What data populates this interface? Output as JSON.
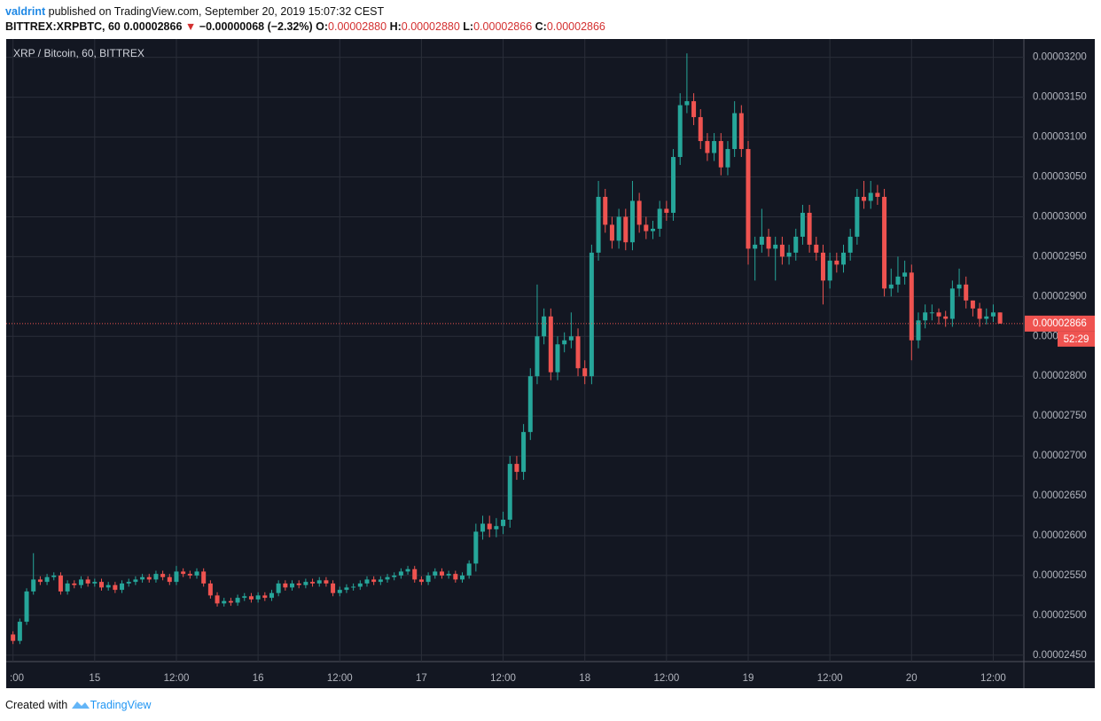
{
  "header": {
    "author": "valdrint",
    "published": "published on TradingView.com, September 20, 2019 15:07:32 CEST",
    "symbol": "BITTREX:XRPBTC, 60",
    "last": "0.00002866",
    "arrow": "▼",
    "change": "−0.00000068 (−2.32%)",
    "o_label": "O:",
    "o": "0.00002880",
    "h_label": "H:",
    "h": "0.00002880",
    "l_label": "L:",
    "l": "0.00002866",
    "c_label": "C:",
    "c": "0.00002866"
  },
  "footer": {
    "created": "Created with",
    "brand": "TradingView"
  },
  "chart_data": {
    "type": "candlestick",
    "title": "XRP / Bitcoin, 60, BITTREX",
    "up_color": "#26a69a",
    "down_color": "#ef5350",
    "grid": true,
    "price_label": "0.00002866",
    "price_value": 2.866e-05,
    "countdown": "52:29",
    "xlim": [
      -1,
      148.5
    ],
    "xticks": [
      {
        "value": 0,
        "label": ":00"
      },
      {
        "value": 12,
        "label": "15"
      },
      {
        "value": 24,
        "label": "12:00"
      },
      {
        "value": 36,
        "label": "16"
      },
      {
        "value": 48,
        "label": "12:00"
      },
      {
        "value": 60,
        "label": "17"
      },
      {
        "value": 72,
        "label": "12:00"
      },
      {
        "value": 84,
        "label": "18"
      },
      {
        "value": 96,
        "label": "12:00"
      },
      {
        "value": 108,
        "label": "19"
      },
      {
        "value": 120,
        "label": "12:00"
      },
      {
        "value": 132,
        "label": "20"
      },
      {
        "value": 144,
        "label": "12:00"
      }
    ],
    "ylim": [
      2.442e-05,
      3.223e-05
    ],
    "yticks": [
      {
        "value": 2.45e-05,
        "label": "0.00002450"
      },
      {
        "value": 2.5e-05,
        "label": "0.00002500"
      },
      {
        "value": 2.55e-05,
        "label": "0.00002550"
      },
      {
        "value": 2.6e-05,
        "label": "0.00002600"
      },
      {
        "value": 2.65e-05,
        "label": "0.00002650"
      },
      {
        "value": 2.7e-05,
        "label": "0.00002700"
      },
      {
        "value": 2.75e-05,
        "label": "0.00002750"
      },
      {
        "value": 2.8e-05,
        "label": "0.00002800"
      },
      {
        "value": 2.85e-05,
        "label": "0.00002850"
      },
      {
        "value": 2.9e-05,
        "label": "0.00002900"
      },
      {
        "value": 2.95e-05,
        "label": "0.00002950"
      },
      {
        "value": 3e-05,
        "label": "0.00003000"
      },
      {
        "value": 3.05e-05,
        "label": "0.00003050"
      },
      {
        "value": 3.1e-05,
        "label": "0.00003100"
      },
      {
        "value": 3.15e-05,
        "label": "0.00003150"
      },
      {
        "value": 3.2e-05,
        "label": "0.00003200"
      }
    ],
    "candles": [
      [
        2.476e-05,
        2.48e-05,
        2.464e-05,
        2.468e-05
      ],
      [
        2.468e-05,
        2.496e-05,
        2.464e-05,
        2.492e-05
      ],
      [
        2.492e-05,
        2.534e-05,
        2.488e-05,
        2.53e-05
      ],
      [
        2.53e-05,
        2.578e-05,
        2.526e-05,
        2.545e-05
      ],
      [
        2.545e-05,
        2.549e-05,
        2.538e-05,
        2.542e-05
      ],
      [
        2.542e-05,
        2.552e-05,
        2.538e-05,
        2.548e-05
      ],
      [
        2.548e-05,
        2.554e-05,
        2.544e-05,
        2.55e-05
      ],
      [
        2.55e-05,
        2.554e-05,
        2.526e-05,
        2.53e-05
      ],
      [
        2.53e-05,
        2.544e-05,
        2.526e-05,
        2.54e-05
      ],
      [
        2.54e-05,
        2.544e-05,
        2.534e-05,
        2.538e-05
      ],
      [
        2.538e-05,
        2.549e-05,
        2.534e-05,
        2.545e-05
      ],
      [
        2.545e-05,
        2.549e-05,
        2.536e-05,
        2.54e-05
      ],
      [
        2.54e-05,
        2.546e-05,
        2.536e-05,
        2.542e-05
      ],
      [
        2.542e-05,
        2.546e-05,
        2.531e-05,
        2.535e-05
      ],
      [
        2.535e-05,
        2.542e-05,
        2.531e-05,
        2.538e-05
      ],
      [
        2.538e-05,
        2.542e-05,
        2.528e-05,
        2.532e-05
      ],
      [
        2.532e-05,
        2.544e-05,
        2.528e-05,
        2.54e-05
      ],
      [
        2.54e-05,
        2.546e-05,
        2.536e-05,
        2.542e-05
      ],
      [
        2.542e-05,
        2.549e-05,
        2.538e-05,
        2.545e-05
      ],
      [
        2.545e-05,
        2.552e-05,
        2.541e-05,
        2.548e-05
      ],
      [
        2.548e-05,
        2.552e-05,
        2.541e-05,
        2.545e-05
      ],
      [
        2.545e-05,
        2.556e-05,
        2.541e-05,
        2.552e-05
      ],
      [
        2.552e-05,
        2.556e-05,
        2.544e-05,
        2.548e-05
      ],
      [
        2.548e-05,
        2.552e-05,
        2.538e-05,
        2.542e-05
      ],
      [
        2.542e-05,
        2.562e-05,
        2.538e-05,
        2.555e-05
      ],
      [
        2.555e-05,
        2.559e-05,
        2.548e-05,
        2.552e-05
      ],
      [
        2.552e-05,
        2.556e-05,
        2.546e-05,
        2.55e-05
      ],
      [
        2.55e-05,
        2.559e-05,
        2.546e-05,
        2.555e-05
      ],
      [
        2.555e-05,
        2.559e-05,
        2.536e-05,
        2.54e-05
      ],
      [
        2.54e-05,
        2.544e-05,
        2.521e-05,
        2.525e-05
      ],
      [
        2.525e-05,
        2.529e-05,
        2.511e-05,
        2.515e-05
      ],
      [
        2.515e-05,
        2.522e-05,
        2.511e-05,
        2.518e-05
      ],
      [
        2.518e-05,
        2.522e-05,
        2.512e-05,
        2.516e-05
      ],
      [
        2.516e-05,
        2.526e-05,
        2.512e-05,
        2.522e-05
      ],
      [
        2.522e-05,
        2.528e-05,
        2.518e-05,
        2.524e-05
      ],
      [
        2.524e-05,
        2.528e-05,
        2.516e-05,
        2.52e-05
      ],
      [
        2.52e-05,
        2.529e-05,
        2.516e-05,
        2.525e-05
      ],
      [
        2.525e-05,
        2.529e-05,
        2.518e-05,
        2.522e-05
      ],
      [
        2.522e-05,
        2.532e-05,
        2.518e-05,
        2.528e-05
      ],
      [
        2.528e-05,
        2.544e-05,
        2.524e-05,
        2.54e-05
      ],
      [
        2.54e-05,
        2.544e-05,
        2.531e-05,
        2.535e-05
      ],
      [
        2.535e-05,
        2.544e-05,
        2.531e-05,
        2.54e-05
      ],
      [
        2.54e-05,
        2.544e-05,
        2.534e-05,
        2.538e-05
      ],
      [
        2.538e-05,
        2.546e-05,
        2.534e-05,
        2.542e-05
      ],
      [
        2.542e-05,
        2.546e-05,
        2.536e-05,
        2.54e-05
      ],
      [
        2.54e-05,
        2.548e-05,
        2.536e-05,
        2.544e-05
      ],
      [
        2.544e-05,
        2.548e-05,
        2.536e-05,
        2.54e-05
      ],
      [
        2.54e-05,
        2.544e-05,
        2.524e-05,
        2.528e-05
      ],
      [
        2.528e-05,
        2.536e-05,
        2.524e-05,
        2.532e-05
      ],
      [
        2.532e-05,
        2.539e-05,
        2.528e-05,
        2.535e-05
      ],
      [
        2.535e-05,
        2.54e-05,
        2.531e-05,
        2.536e-05
      ],
      [
        2.536e-05,
        2.544e-05,
        2.532e-05,
        2.54e-05
      ],
      [
        2.54e-05,
        2.549e-05,
        2.536e-05,
        2.545e-05
      ],
      [
        2.545e-05,
        2.549e-05,
        2.538e-05,
        2.542e-05
      ],
      [
        2.542e-05,
        2.549e-05,
        2.538e-05,
        2.545e-05
      ],
      [
        2.545e-05,
        2.552e-05,
        2.541e-05,
        2.548e-05
      ],
      [
        2.548e-05,
        2.554e-05,
        2.544e-05,
        2.55e-05
      ],
      [
        2.55e-05,
        2.559e-05,
        2.546e-05,
        2.555e-05
      ],
      [
        2.555e-05,
        2.562e-05,
        2.551e-05,
        2.558e-05
      ],
      [
        2.558e-05,
        2.562e-05,
        2.541e-05,
        2.545e-05
      ],
      [
        2.545e-05,
        2.549e-05,
        2.538e-05,
        2.542e-05
      ],
      [
        2.542e-05,
        2.554e-05,
        2.538e-05,
        2.55e-05
      ],
      [
        2.55e-05,
        2.559e-05,
        2.546e-05,
        2.555e-05
      ],
      [
        2.555e-05,
        2.559e-05,
        2.546e-05,
        2.55e-05
      ],
      [
        2.55e-05,
        2.556e-05,
        2.546e-05,
        2.552e-05
      ],
      [
        2.552e-05,
        2.556e-05,
        2.541e-05,
        2.545e-05
      ],
      [
        2.545e-05,
        2.554e-05,
        2.541e-05,
        2.55e-05
      ],
      [
        2.55e-05,
        2.569e-05,
        2.546e-05,
        2.565e-05
      ],
      [
        2.565e-05,
        2.615e-05,
        2.555e-05,
        2.605e-05
      ],
      [
        2.605e-05,
        2.625e-05,
        2.595e-05,
        2.615e-05
      ],
      [
        2.615e-05,
        2.625e-05,
        2.598e-05,
        2.608e-05
      ],
      [
        2.608e-05,
        2.622e-05,
        2.598e-05,
        2.612e-05
      ],
      [
        2.612e-05,
        2.63e-05,
        2.602e-05,
        2.62e-05
      ],
      [
        2.62e-05,
        2.7e-05,
        2.61e-05,
        2.69e-05
      ],
      [
        2.69e-05,
        2.7e-05,
        2.67e-05,
        2.68e-05
      ],
      [
        2.68e-05,
        2.74e-05,
        2.67e-05,
        2.73e-05
      ],
      [
        2.73e-05,
        2.81e-05,
        2.72e-05,
        2.8e-05
      ],
      [
        2.8e-05,
        2.915e-05,
        2.79e-05,
        2.85e-05
      ],
      [
        2.85e-05,
        2.885e-05,
        2.84e-05,
        2.875e-05
      ],
      [
        2.875e-05,
        2.885e-05,
        2.795e-05,
        2.805e-05
      ],
      [
        2.805e-05,
        2.85e-05,
        2.795e-05,
        2.84e-05
      ],
      [
        2.84e-05,
        2.855e-05,
        2.83e-05,
        2.845e-05
      ],
      [
        2.845e-05,
        2.88e-05,
        2.835e-05,
        2.85e-05
      ],
      [
        2.85e-05,
        2.86e-05,
        2.8e-05,
        2.81e-05
      ],
      [
        2.81e-05,
        2.82e-05,
        2.79e-05,
        2.8e-05
      ],
      [
        2.8e-05,
        2.965e-05,
        2.79e-05,
        2.955e-05
      ],
      [
        2.955e-05,
        3.045e-05,
        2.945e-05,
        3.025e-05
      ],
      [
        3.025e-05,
        3.035e-05,
        2.98e-05,
        2.99e-05
      ],
      [
        2.99e-05,
        3e-05,
        2.96e-05,
        2.97e-05
      ],
      [
        2.97e-05,
        3.01e-05,
        2.96e-05,
        3e-05
      ],
      [
        3e-05,
        3.01e-05,
        2.958e-05,
        2.968e-05
      ],
      [
        2.968e-05,
        3.045e-05,
        2.958e-05,
        3.02e-05
      ],
      [
        3.02e-05,
        3.03e-05,
        2.98e-05,
        2.99e-05
      ],
      [
        2.99e-05,
        3e-05,
        2.972e-05,
        2.982e-05
      ],
      [
        2.982e-05,
        2.995e-05,
        2.972e-05,
        2.985e-05
      ],
      [
        2.985e-05,
        3.02e-05,
        2.975e-05,
        3.01e-05
      ],
      [
        3.01e-05,
        3.02e-05,
        2.995e-05,
        3.005e-05
      ],
      [
        3.005e-05,
        3.085e-05,
        2.995e-05,
        3.075e-05
      ],
      [
        3.075e-05,
        3.155e-05,
        3.065e-05,
        3.14e-05
      ],
      [
        3.14e-05,
        3.205e-05,
        3.13e-05,
        3.145e-05
      ],
      [
        3.145e-05,
        3.155e-05,
        3.115e-05,
        3.125e-05
      ],
      [
        3.125e-05,
        3.135e-05,
        3.085e-05,
        3.095e-05
      ],
      [
        3.095e-05,
        3.105e-05,
        3.07e-05,
        3.08e-05
      ],
      [
        3.08e-05,
        3.105e-05,
        3.07e-05,
        3.095e-05
      ],
      [
        3.095e-05,
        3.105e-05,
        3.052e-05,
        3.062e-05
      ],
      [
        3.062e-05,
        3.095e-05,
        3.052e-05,
        3.085e-05
      ],
      [
        3.085e-05,
        3.145e-05,
        3.075e-05,
        3.13e-05
      ],
      [
        3.13e-05,
        3.14e-05,
        3.075e-05,
        3.085e-05
      ],
      [
        3.085e-05,
        3.095e-05,
        2.94e-05,
        2.96e-05
      ],
      [
        2.96e-05,
        2.975e-05,
        2.92e-05,
        2.965e-05
      ],
      [
        2.965e-05,
        3.01e-05,
        2.955e-05,
        2.975e-05
      ],
      [
        2.975e-05,
        2.985e-05,
        2.95e-05,
        2.96e-05
      ],
      [
        2.96e-05,
        2.975e-05,
        2.92e-05,
        2.965e-05
      ],
      [
        2.965e-05,
        2.975e-05,
        2.94e-05,
        2.95e-05
      ],
      [
        2.95e-05,
        2.965e-05,
        2.94e-05,
        2.955e-05
      ],
      [
        2.955e-05,
        2.985e-05,
        2.945e-05,
        2.975e-05
      ],
      [
        2.975e-05,
        3.015e-05,
        2.965e-05,
        3.005e-05
      ],
      [
        3.005e-05,
        3.015e-05,
        2.955e-05,
        2.965e-05
      ],
      [
        2.965e-05,
        2.975e-05,
        2.945e-05,
        2.955e-05
      ],
      [
        2.955e-05,
        2.965e-05,
        2.89e-05,
        2.92e-05
      ],
      [
        2.92e-05,
        2.955e-05,
        2.91e-05,
        2.945e-05
      ],
      [
        2.945e-05,
        2.955e-05,
        2.93e-05,
        2.94e-05
      ],
      [
        2.94e-05,
        2.965e-05,
        2.93e-05,
        2.955e-05
      ],
      [
        2.955e-05,
        2.985e-05,
        2.945e-05,
        2.975e-05
      ],
      [
        2.975e-05,
        3.035e-05,
        2.965e-05,
        3.025e-05
      ],
      [
        3.025e-05,
        3.045e-05,
        3.01e-05,
        3.02e-05
      ],
      [
        3.02e-05,
        3.045e-05,
        3.01e-05,
        3.03e-05
      ],
      [
        3.03e-05,
        3.04e-05,
        3.015e-05,
        3.025e-05
      ],
      [
        3.025e-05,
        3.035e-05,
        2.9e-05,
        2.91e-05
      ],
      [
        2.91e-05,
        2.935e-05,
        2.9e-05,
        2.915e-05
      ],
      [
        2.915e-05,
        2.95e-05,
        2.905e-05,
        2.925e-05
      ],
      [
        2.925e-05,
        2.945e-05,
        2.915e-05,
        2.93e-05
      ],
      [
        2.93e-05,
        2.94e-05,
        2.82e-05,
        2.845e-05
      ],
      [
        2.845e-05,
        2.88e-05,
        2.835e-05,
        2.87e-05
      ],
      [
        2.87e-05,
        2.89e-05,
        2.86e-05,
        2.88e-05
      ],
      [
        2.88e-05,
        2.89e-05,
        2.87e-05,
        2.88e-05
      ],
      [
        2.88e-05,
        2.885e-05,
        2.865e-05,
        2.875e-05
      ],
      [
        2.875e-05,
        2.882e-05,
        2.862e-05,
        2.872e-05
      ],
      [
        2.872e-05,
        2.92e-05,
        2.862e-05,
        2.91e-05
      ],
      [
        2.91e-05,
        2.935e-05,
        2.9e-05,
        2.915e-05
      ],
      [
        2.915e-05,
        2.925e-05,
        2.885e-05,
        2.895e-05
      ],
      [
        2.895e-05,
        2.895e-05,
        2.875e-05,
        2.885e-05
      ],
      [
        2.885e-05,
        2.892e-05,
        2.862e-05,
        2.872e-05
      ],
      [
        2.872e-05,
        2.885e-05,
        2.865e-05,
        2.875e-05
      ],
      [
        2.875e-05,
        2.89e-05,
        2.868e-05,
        2.88e-05
      ],
      [
        2.88e-05,
        2.88e-05,
        2.866e-05,
        2.866e-05
      ]
    ]
  }
}
